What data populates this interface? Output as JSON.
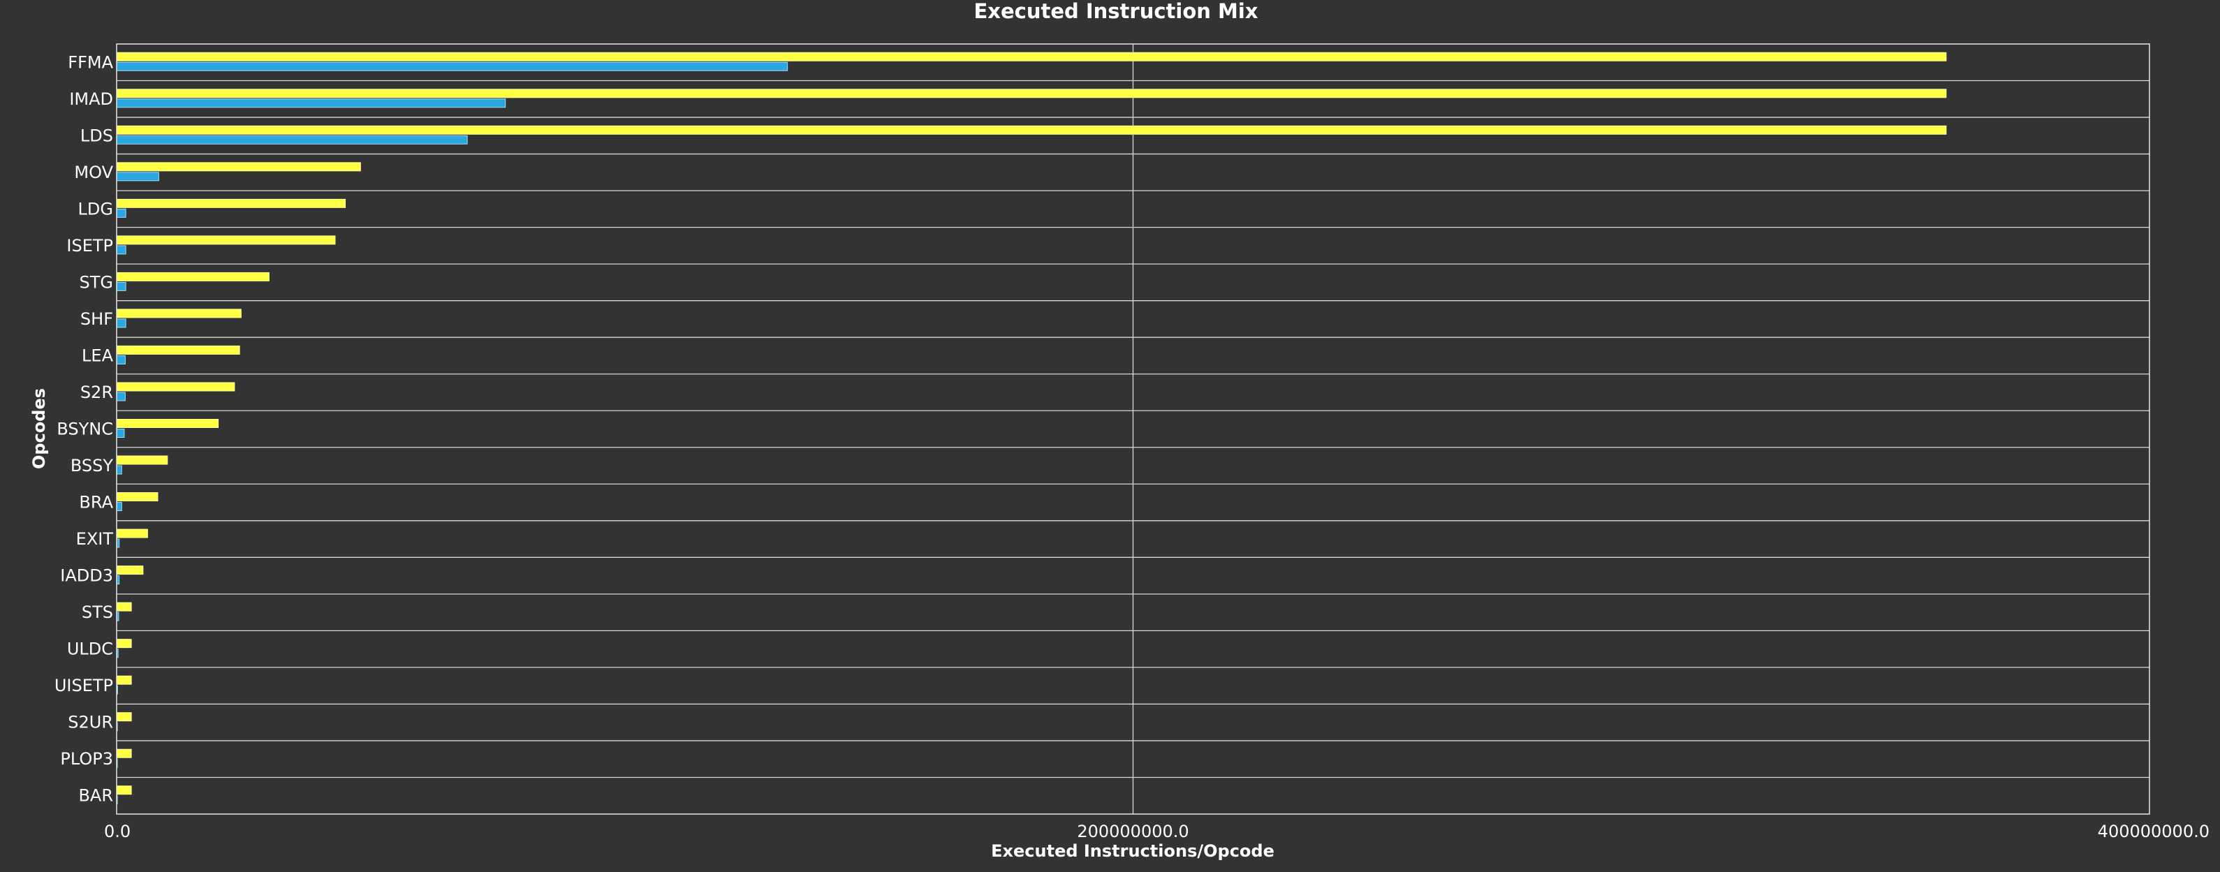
{
  "chart_data": {
    "type": "bar",
    "orientation": "horizontal",
    "title": "Executed Instruction Mix",
    "xlabel": "Executed Instructions/Opcode",
    "ylabel": "Opcodes",
    "xlim": [
      0,
      400000000
    ],
    "x_ticks": [
      "0.0",
      "200000000.0",
      "400000000.0"
    ],
    "x_tick_values": [
      0,
      200000000,
      400000000
    ],
    "grid": true,
    "categories": [
      "FFMA",
      "IMAD",
      "LDS",
      "MOV",
      "LDG",
      "ISETP",
      "STG",
      "SHF",
      "LEA",
      "S2R",
      "BSYNC",
      "BSSY",
      "BRA",
      "EXIT",
      "IADD3",
      "STS",
      "ULDC",
      "UISETP",
      "S2UR",
      "PLOP3",
      "BAR"
    ],
    "series": [
      {
        "color": "#ffff44",
        "values": [
          360000000,
          360000000,
          360000000,
          48000000,
          45000000,
          43000000,
          30000000,
          24500000,
          24200000,
          23200000,
          20000000,
          10000000,
          8100000,
          6100000,
          5200000,
          2900000,
          2900000,
          2900000,
          2900000,
          2900000,
          2900000
        ]
      },
      {
        "color": "#2aa7e0",
        "values": [
          132000000,
          76500000,
          69000000,
          8300000,
          1800000,
          1800000,
          1800000,
          1800000,
          1700000,
          1700000,
          1500000,
          1000000,
          1000000,
          500000,
          500000,
          400000,
          300000,
          200000,
          150000,
          100000,
          100000
        ]
      }
    ]
  }
}
